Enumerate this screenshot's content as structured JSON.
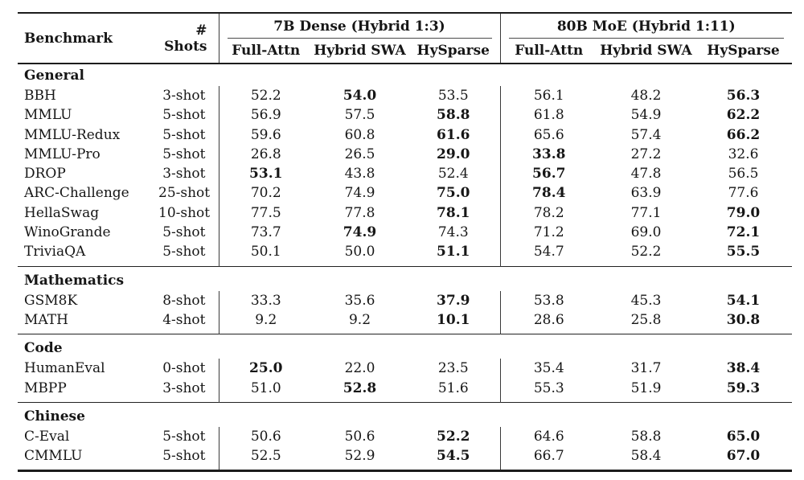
{
  "table": {
    "col_benchmark": "Benchmark",
    "col_shots": "# Shots",
    "groups": [
      {
        "label": "7B Dense (Hybrid 1:3)",
        "columns": [
          "Full-Attn",
          "Hybrid SWA",
          "HySparse"
        ]
      },
      {
        "label": "80B MoE (Hybrid 1:11)",
        "columns": [
          "Full-Attn",
          "Hybrid SWA",
          "HySparse"
        ]
      }
    ],
    "sections": [
      {
        "name": "General",
        "rows": [
          {
            "benchmark": "BBH",
            "shots": "3-shot",
            "values": [
              "52.2",
              "54.0",
              "53.5",
              "56.1",
              "48.2",
              "56.3"
            ],
            "bold": [
              false,
              true,
              false,
              false,
              false,
              true
            ]
          },
          {
            "benchmark": "MMLU",
            "shots": "5-shot",
            "values": [
              "56.9",
              "57.5",
              "58.8",
              "61.8",
              "54.9",
              "62.2"
            ],
            "bold": [
              false,
              false,
              true,
              false,
              false,
              true
            ]
          },
          {
            "benchmark": "MMLU-Redux",
            "shots": "5-shot",
            "values": [
              "59.6",
              "60.8",
              "61.6",
              "65.6",
              "57.4",
              "66.2"
            ],
            "bold": [
              false,
              false,
              true,
              false,
              false,
              true
            ]
          },
          {
            "benchmark": "MMLU-Pro",
            "shots": "5-shot",
            "values": [
              "26.8",
              "26.5",
              "29.0",
              "33.8",
              "27.2",
              "32.6"
            ],
            "bold": [
              false,
              false,
              true,
              true,
              false,
              false
            ]
          },
          {
            "benchmark": "DROP",
            "shots": "3-shot",
            "values": [
              "53.1",
              "43.8",
              "52.4",
              "56.7",
              "47.8",
              "56.5"
            ],
            "bold": [
              true,
              false,
              false,
              true,
              false,
              false
            ]
          },
          {
            "benchmark": "ARC-Challenge",
            "shots": "25-shot",
            "values": [
              "70.2",
              "74.9",
              "75.0",
              "78.4",
              "63.9",
              "77.6"
            ],
            "bold": [
              false,
              false,
              true,
              true,
              false,
              false
            ]
          },
          {
            "benchmark": "HellaSwag",
            "shots": "10-shot",
            "values": [
              "77.5",
              "77.8",
              "78.1",
              "78.2",
              "77.1",
              "79.0"
            ],
            "bold": [
              false,
              false,
              true,
              false,
              false,
              true
            ]
          },
          {
            "benchmark": "WinoGrande",
            "shots": "5-shot",
            "values": [
              "73.7",
              "74.9",
              "74.3",
              "71.2",
              "69.0",
              "72.1"
            ],
            "bold": [
              false,
              true,
              false,
              false,
              false,
              true
            ]
          },
          {
            "benchmark": "TriviaQA",
            "shots": "5-shot",
            "values": [
              "50.1",
              "50.0",
              "51.1",
              "54.7",
              "52.2",
              "55.5"
            ],
            "bold": [
              false,
              false,
              true,
              false,
              false,
              true
            ]
          }
        ]
      },
      {
        "name": "Mathematics",
        "rows": [
          {
            "benchmark": "GSM8K",
            "shots": "8-shot",
            "values": [
              "33.3",
              "35.6",
              "37.9",
              "53.8",
              "45.3",
              "54.1"
            ],
            "bold": [
              false,
              false,
              true,
              false,
              false,
              true
            ]
          },
          {
            "benchmark": "MATH",
            "shots": "4-shot",
            "values": [
              "9.2",
              "9.2",
              "10.1",
              "28.6",
              "25.8",
              "30.8"
            ],
            "bold": [
              false,
              false,
              true,
              false,
              false,
              true
            ]
          }
        ]
      },
      {
        "name": "Code",
        "rows": [
          {
            "benchmark": "HumanEval",
            "shots": "0-shot",
            "values": [
              "25.0",
              "22.0",
              "23.5",
              "35.4",
              "31.7",
              "38.4"
            ],
            "bold": [
              true,
              false,
              false,
              false,
              false,
              true
            ]
          },
          {
            "benchmark": "MBPP",
            "shots": "3-shot",
            "values": [
              "51.0",
              "52.8",
              "51.6",
              "55.3",
              "51.9",
              "59.3"
            ],
            "bold": [
              false,
              true,
              false,
              false,
              false,
              true
            ]
          }
        ]
      },
      {
        "name": "Chinese",
        "rows": [
          {
            "benchmark": "C-Eval",
            "shots": "5-shot",
            "values": [
              "50.6",
              "50.6",
              "52.2",
              "64.6",
              "58.8",
              "65.0"
            ],
            "bold": [
              false,
              false,
              true,
              false,
              false,
              true
            ]
          },
          {
            "benchmark": "CMMLU",
            "shots": "5-shot",
            "values": [
              "52.5",
              "52.9",
              "54.5",
              "66.7",
              "58.4",
              "67.0"
            ],
            "bold": [
              false,
              false,
              true,
              false,
              false,
              true
            ]
          }
        ]
      }
    ]
  }
}
